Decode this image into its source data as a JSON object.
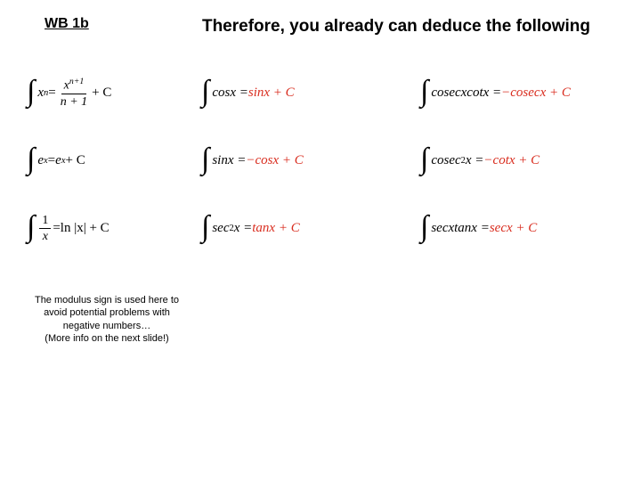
{
  "header": {
    "label": "WB 1b",
    "therefore": "Therefore, you already can deduce the following"
  },
  "formulas": {
    "r1c1_lhs": "x",
    "r1c1_exp": "n",
    "r1c1_eq": " = ",
    "r1c1_num_base": "x",
    "r1c1_num_exp": "n+1",
    "r1c1_den": "n + 1",
    "r1c1_tail": " + C",
    "r2c1_body": "e",
    "r2c1_exp": "x",
    "r2c1_eq": " = ",
    "r2c1_rhs": "e",
    "r2c1_rhs_exp": "x",
    "r2c1_tail": " + C",
    "r3c1_num": "1",
    "r3c1_den": "x",
    "r3c1_eq": " = ",
    "r3c1_rhs": "ln |x| + C",
    "r1c2_lhs": "cosx = ",
    "r1c2_red": "sinx + C",
    "r2c2_lhs": "sinx = ",
    "r2c2_red": "−cosx + C",
    "r3c2_lhs": "sec",
    "r3c2_exp": "2",
    "r3c2_lhs2": "x = ",
    "r3c2_red": "tanx + C",
    "r1c3_lhs": "cosecxcotx =",
    "r1c3_red": "−cosecx + C",
    "r2c3_lhs": "cosec",
    "r2c3_exp": "2",
    "r2c3_lhs2": "x = ",
    "r2c3_red": "−cotx + C",
    "r3c3_lhs": "secxtanx =",
    "r3c3_red": "secx + C"
  },
  "footnote": {
    "line1": "The modulus sign is used here to",
    "line2": "avoid potential problems with",
    "line3": "negative numbers…",
    "line4": "(More info on the next slide!)"
  },
  "colors": {
    "red": "#d92d1f",
    "text": "#000000",
    "bg": "#ffffff"
  }
}
